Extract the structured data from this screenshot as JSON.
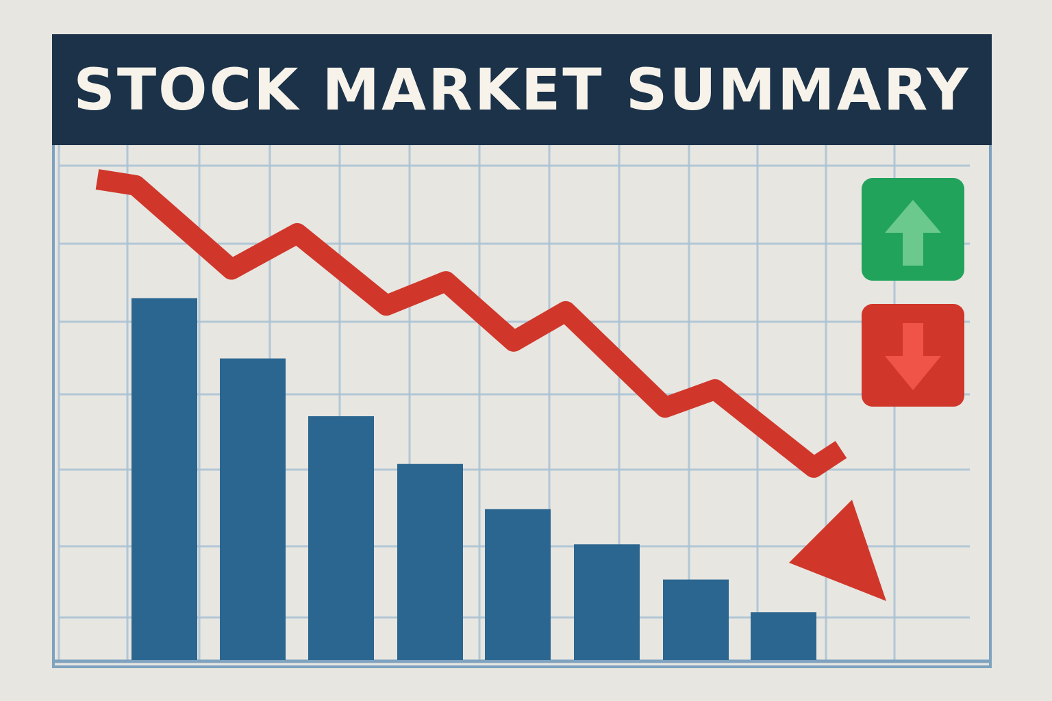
{
  "colors": {
    "background": "#e7e6e1",
    "header": "#1b3249",
    "title_text": "#f7f3ea",
    "grid": "#a9c2d4",
    "frame_border": "#7fa3bf",
    "bars": "#2b6690",
    "trend_line": "#d0372a",
    "up_button": "#22a35c",
    "up_arrow": "#6bc98d",
    "down_button": "#d0372a",
    "down_arrow": "#f05448"
  },
  "header": {
    "title": "STOCK MARKET SUMMARY"
  },
  "legend": {
    "up_icon": "arrow-up-icon",
    "down_icon": "arrow-down-icon"
  },
  "chart_data": {
    "type": "bar",
    "grid": true,
    "ylim": [
      0,
      100
    ],
    "categories": [
      "",
      "",
      "",
      "",
      "",
      "",
      "",
      ""
    ],
    "values": [
      72,
      60,
      48.5,
      39,
      30,
      23,
      16,
      9.5
    ],
    "overlay": {
      "type": "line",
      "direction": "down",
      "arrowhead": true,
      "values": [
        95,
        94,
        80,
        86,
        74,
        78,
        68,
        73,
        57,
        60,
        47,
        50,
        30
      ]
    }
  }
}
